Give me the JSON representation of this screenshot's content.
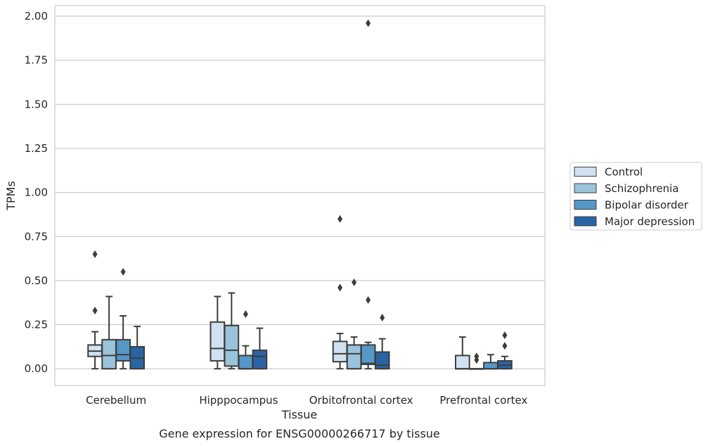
{
  "chart_data": {
    "type": "boxplot",
    "caption": "Gene expression for ENSG00000266717 by tissue",
    "xlabel": "Tissue",
    "ylabel": "TPMs",
    "ylim": [
      -0.095,
      2.06
    ],
    "yticks": [
      0.0,
      0.25,
      0.5,
      0.75,
      1.0,
      1.25,
      1.5,
      1.75,
      2.0
    ],
    "ytick_labels": [
      "0.00",
      "0.25",
      "0.50",
      "0.75",
      "1.00",
      "1.25",
      "1.50",
      "1.75",
      "2.00"
    ],
    "grid": "horizontal",
    "legend_position": "right",
    "categories": [
      "Cerebellum",
      "Hipppocampus",
      "Orbitofrontal cortex",
      "Prefrontal cortex"
    ],
    "series": [
      {
        "name": "Control",
        "color": "#d1e1f0",
        "boxes": [
          {
            "whislo": 0.0,
            "q1": 0.07,
            "med": 0.1,
            "q3": 0.135,
            "whishi": 0.21,
            "fliers": [
              0.33,
              0.65
            ]
          },
          {
            "whislo": 0.0,
            "q1": 0.045,
            "med": 0.115,
            "q3": 0.265,
            "whishi": 0.41,
            "fliers": []
          },
          {
            "whislo": 0.0,
            "q1": 0.04,
            "med": 0.085,
            "q3": 0.155,
            "whishi": 0.2,
            "fliers": [
              0.46,
              0.85
            ]
          },
          {
            "whislo": 0.0,
            "q1": 0.0,
            "med": 0.0,
            "q3": 0.075,
            "whishi": 0.18,
            "fliers": []
          }
        ]
      },
      {
        "name": "Schizophrenia",
        "color": "#9ac3dc",
        "boxes": [
          {
            "whislo": 0.0,
            "q1": 0.0,
            "med": 0.075,
            "q3": 0.165,
            "whishi": 0.41,
            "fliers": []
          },
          {
            "whislo": 0.0,
            "q1": 0.015,
            "med": 0.105,
            "q3": 0.245,
            "whishi": 0.43,
            "fliers": []
          },
          {
            "whislo": 0.0,
            "q1": 0.0,
            "med": 0.085,
            "q3": 0.135,
            "whishi": 0.18,
            "fliers": [
              0.49
            ]
          },
          {
            "whislo": 0.0,
            "q1": 0.0,
            "med": 0.0,
            "q3": 0.0,
            "whishi": 0.0,
            "fliers": [
              0.05,
              0.07
            ]
          }
        ]
      },
      {
        "name": "Bipolar disorder",
        "color": "#5597c6",
        "boxes": [
          {
            "whislo": 0.0,
            "q1": 0.045,
            "med": 0.08,
            "q3": 0.165,
            "whishi": 0.3,
            "fliers": [
              0.55
            ]
          },
          {
            "whislo": 0.0,
            "q1": 0.0,
            "med": 0.0,
            "q3": 0.075,
            "whishi": 0.13,
            "fliers": [
              0.31
            ]
          },
          {
            "whislo": 0.0,
            "q1": 0.025,
            "med": 0.03,
            "q3": 0.135,
            "whishi": 0.15,
            "fliers": [
              0.39,
              1.96
            ]
          },
          {
            "whislo": 0.0,
            "q1": 0.0,
            "med": 0.0,
            "q3": 0.035,
            "whishi": 0.08,
            "fliers": []
          }
        ]
      },
      {
        "name": "Major depression",
        "color": "#2a64a4",
        "boxes": [
          {
            "whislo": 0.0,
            "q1": 0.0,
            "med": 0.06,
            "q3": 0.125,
            "whishi": 0.24,
            "fliers": []
          },
          {
            "whislo": 0.0,
            "q1": 0.0,
            "med": 0.07,
            "q3": 0.105,
            "whishi": 0.23,
            "fliers": []
          },
          {
            "whislo": 0.0,
            "q1": 0.0,
            "med": 0.02,
            "q3": 0.095,
            "whishi": 0.17,
            "fliers": [
              0.29
            ]
          },
          {
            "whislo": 0.0,
            "q1": 0.0,
            "med": 0.02,
            "q3": 0.045,
            "whishi": 0.07,
            "fliers": [
              0.13,
              0.19
            ]
          }
        ]
      }
    ]
  }
}
